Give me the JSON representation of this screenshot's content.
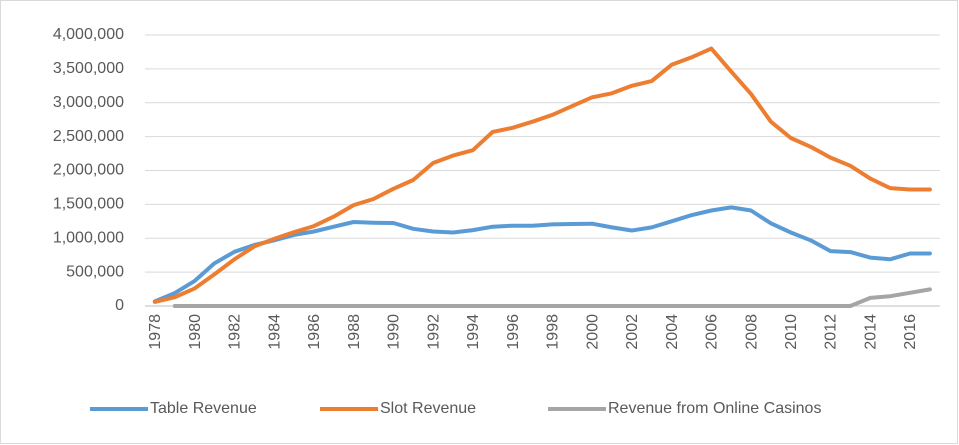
{
  "chart_data": {
    "type": "line",
    "categories": [
      1978,
      null,
      1980,
      null,
      1982,
      null,
      1984,
      null,
      1986,
      null,
      1988,
      null,
      1990,
      null,
      1992,
      null,
      1994,
      null,
      1996,
      null,
      1998,
      null,
      2000,
      null,
      2002,
      null,
      2004,
      null,
      2006,
      null,
      2008,
      null,
      2010,
      null,
      2012,
      null,
      2014,
      null,
      2016,
      null
    ],
    "series": [
      {
        "name": "Table Revenue",
        "color": "#5b9bd5",
        "values": [
          70000,
          190000,
          370000,
          630000,
          800000,
          900000,
          970000,
          1050000,
          1100000,
          1170000,
          1240000,
          1230000,
          1225000,
          1140000,
          1100000,
          1085000,
          1120000,
          1170000,
          1185000,
          1185000,
          1205000,
          1210000,
          1215000,
          1160000,
          1115000,
          1160000,
          1250000,
          1340000,
          1410000,
          1455000,
          1410000,
          1220000,
          1085000,
          970000,
          810000,
          795000,
          715000,
          690000,
          775000,
          775000
        ]
      },
      {
        "name": "Slot Revenue",
        "color": "#ed7d31",
        "values": [
          60000,
          130000,
          260000,
          470000,
          690000,
          880000,
          990000,
          1090000,
          1180000,
          1320000,
          1490000,
          1580000,
          1730000,
          1860000,
          2110000,
          2220000,
          2300000,
          2570000,
          2630000,
          2720000,
          2820000,
          2950000,
          3080000,
          3140000,
          3250000,
          3320000,
          3560000,
          3670000,
          3800000,
          3460000,
          3130000,
          2720000,
          2480000,
          2350000,
          2190000,
          2070000,
          1880000,
          1740000,
          1720000,
          1720000
        ]
      },
      {
        "name": "Revenue from Online Casinos",
        "color": "#a5a5a5",
        "values": [
          null,
          0,
          0,
          0,
          0,
          0,
          0,
          0,
          0,
          0,
          0,
          0,
          0,
          0,
          0,
          0,
          0,
          0,
          0,
          0,
          0,
          0,
          0,
          0,
          0,
          0,
          0,
          0,
          0,
          0,
          0,
          0,
          0,
          0,
          0,
          0,
          120000,
          145000,
          195000,
          245000
        ]
      }
    ],
    "ylim": [
      0,
      4000000
    ],
    "yticks": [
      0,
      {
        "value": 500000,
        "label": "500,000"
      },
      {
        "value": 1000000,
        "label": "1,000,000"
      },
      {
        "value": 1500000,
        "label": "1,500,000"
      },
      {
        "value": 2000000,
        "label": "2,000,000"
      },
      {
        "value": 2500000,
        "label": "2,500,000"
      },
      {
        "value": 3000000,
        "label": "3,000,000"
      },
      {
        "value": 3500000,
        "label": "3,500,000"
      },
      {
        "value": 4000000,
        "label": "4,000,000"
      }
    ],
    "grid": true,
    "legend": "bottom"
  }
}
